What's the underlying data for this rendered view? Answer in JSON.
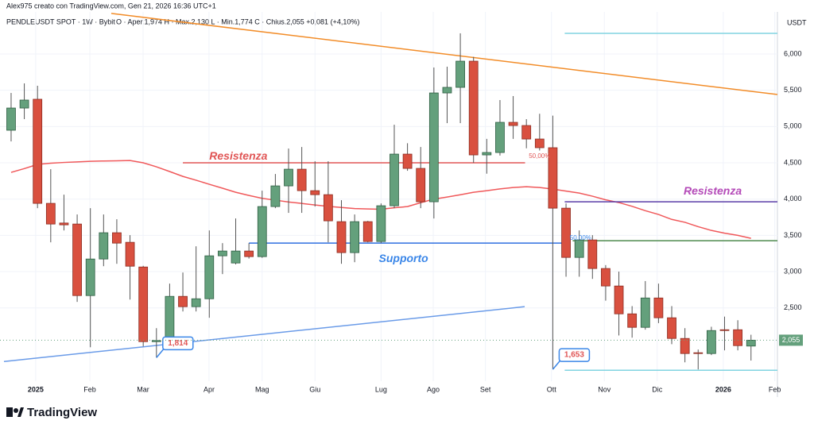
{
  "header": {
    "author": "Alex975 creato con TradingView.com, Gen 21, 2026 16:36 UTC+1",
    "logo": "TradingView"
  },
  "chart_data": {
    "type": "candlestick",
    "title": "PENDLEUSDT SPOT · 1W · Bybit",
    "subtitle": "O · Aper.1,974  H · Max.2,130  L · Min.1,774  C · Chius.2,055  +0,081 (+4,10%)",
    "y_unit": "USDT",
    "up_color": "#64a07c",
    "down_color": "#d9503f",
    "open": [
      4949,
      5255,
      5376,
      3941,
      3670,
      3656,
      2670,
      3174,
      3536,
      3404,
      3064,
      2035,
      2035,
      2659,
      2517,
      2626,
      3218,
      3119,
      3284,
      3207,
      3897,
      4182,
      4412,
      4116,
      4061,
      3689,
      3262,
      3689,
      3415,
      3908,
      4620,
      4423,
      3963,
      5463,
      5540,
      5901,
      4609,
      4642,
      5058,
      5014,
      4828,
      4708,
      3875,
      3196,
      3437,
      3043,
      2802,
      2418,
      2232,
      2637,
      2364,
      2079,
      1882,
      1871,
      2199,
      2199,
      1974
    ],
    "high": [
      5463,
      5595,
      5562,
      4412,
      4061,
      3788,
      3875,
      3788,
      3722,
      3503,
      3080,
      2221,
      2835,
      2988,
      3349,
      3568,
      3393,
      3733,
      3393,
      4116,
      4346,
      4697,
      4718,
      4521,
      4521,
      3985,
      3788,
      3700,
      3940,
      5025,
      4770,
      4718,
      5814,
      5825,
      6285,
      5960,
      4830,
      5365,
      5420,
      5102,
      5176,
      5150,
      3940,
      3568,
      3503,
      3090,
      3000,
      2525,
      2870,
      2835,
      2525,
      2221,
      1926,
      2240,
      2380,
      2330,
      2130
    ],
    "low": [
      4795,
      5102,
      3875,
      3404,
      3568,
      2583,
      1958,
      3075,
      3108,
      2615,
      1970,
      1814,
      1958,
      2451,
      2451,
      2364,
      2966,
      3100,
      3180,
      3190,
      3875,
      3810,
      3810,
      3897,
      3404,
      3108,
      3130,
      3404,
      3393,
      3875,
      4390,
      3875,
      3733,
      5047,
      5047,
      4500,
      4350,
      4600,
      4830,
      4700,
      4670,
      1653,
      2930,
      2930,
      2900,
      2600,
      2120,
      2090,
      2200,
      2290,
      2000,
      1750,
      1652,
      1850,
      1915,
      1915,
      1774
    ],
    "close": [
      5255,
      5365,
      3941,
      3656,
      3645,
      2670,
      3174,
      3536,
      3393,
      3075,
      2035,
      2050,
      2659,
      2517,
      2626,
      3218,
      3284,
      3284,
      3207,
      3897,
      4182,
      4412,
      4116,
      4061,
      3700,
      3262,
      3689,
      3415,
      3908,
      4620,
      4423,
      3963,
      5463,
      5540,
      5901,
      4609,
      4642,
      5058,
      5014,
      4828,
      4708,
      3875,
      3196,
      3437,
      3043,
      2802,
      2418,
      2232,
      2637,
      2364,
      2079,
      1871,
      1871,
      2188,
      2188,
      1980,
      2055
    ],
    "moving_average": {
      "color": "#f0585a",
      "values": [
        4368,
        4420,
        4478,
        4495,
        4505,
        4512,
        4521,
        4525,
        4528,
        4532,
        4500,
        4445,
        4380,
        4313,
        4260,
        4204,
        4150,
        4094,
        4050,
        4010,
        3985,
        3960,
        3940,
        3919,
        3900,
        3885,
        3870,
        3864,
        3860,
        3880,
        3897,
        3950,
        4000,
        4028,
        4060,
        4094,
        4116,
        4140,
        4160,
        4171,
        4160,
        4138,
        4110,
        4083,
        4040,
        3990,
        3952,
        3900,
        3840,
        3788,
        3720,
        3680,
        3620,
        3568,
        3530,
        3500,
        3459
      ]
    },
    "last_price": {
      "value": 2055,
      "label": "2,055"
    },
    "xlim": [
      -0.84,
      58
    ],
    "ylim": [
      1490,
      6580
    ],
    "yticks": [
      {
        "value": 2500,
        "label": "2,500"
      },
      {
        "value": 3000,
        "label": "3,000"
      },
      {
        "value": 3500,
        "label": "3,500"
      },
      {
        "value": 4000,
        "label": "4,000"
      },
      {
        "value": 4500,
        "label": "4,500"
      },
      {
        "value": 5000,
        "label": "5,000"
      },
      {
        "value": 5500,
        "label": "5,500"
      },
      {
        "value": 6000,
        "label": "6,000"
      }
    ],
    "xticks": [
      {
        "value": 1.86,
        "label": "2025"
      },
      {
        "value": 5.96,
        "label": "Feb"
      },
      {
        "value": 9.99,
        "label": "Mar"
      },
      {
        "value": 14.98,
        "label": "Apr"
      },
      {
        "value": 19,
        "label": "Mag"
      },
      {
        "value": 23,
        "label": "Giu"
      },
      {
        "value": 28,
        "label": "Lug"
      },
      {
        "value": 31.95,
        "label": "Ago"
      },
      {
        "value": 35.9,
        "label": "Set"
      },
      {
        "value": 40.9,
        "label": "Ott"
      },
      {
        "value": 44.9,
        "label": "Nov"
      },
      {
        "value": 48.9,
        "label": "Dic"
      },
      {
        "value": 53.9,
        "label": "2026"
      },
      {
        "value": 57.8,
        "label": "Feb"
      }
    ],
    "grid": true,
    "lines": [
      {
        "x": [
          7.58,
          58
        ],
        "y": [
          6559,
          5441
        ],
        "color": "#f28c28"
      },
      {
        "x": [
          -0.54,
          38.87
        ],
        "y": [
          1761,
          2517
        ],
        "color": "#6a9be8"
      },
      {
        "x": [
          13,
          38.9
        ],
        "y": [
          4500,
          4500
        ],
        "color": "#e05555"
      },
      {
        "x": [
          18,
          41.9
        ],
        "y": [
          3393,
          3393
        ],
        "color": "#2f6fe0"
      },
      {
        "x": [
          41.9,
          58
        ],
        "y": [
          3963,
          3963
        ],
        "color": "#5b3fa8"
      },
      {
        "x": [
          42.5,
          58
        ],
        "y": [
          3426,
          3426
        ],
        "color": "#4e8a4e"
      },
      {
        "x": [
          41.9,
          58
        ],
        "y": [
          6285,
          6285
        ],
        "color": "#80d4e0"
      },
      {
        "x": [
          41.9,
          58
        ],
        "y": [
          1640,
          1640
        ],
        "color": "#80d4e0"
      }
    ],
    "annotations": [
      {
        "text": "Resistenza",
        "x": 17.2,
        "y": 4587,
        "color": "#e05555"
      },
      {
        "text": "Resistenza",
        "x": 53.1,
        "y": 4105,
        "color": "#b44ab8"
      },
      {
        "text": "Supporto",
        "x": 29.7,
        "y": 3174,
        "color": "#3a86e8"
      },
      {
        "text": "50,00%",
        "x": 40,
        "y": 4587,
        "color": "#e05555"
      },
      {
        "text": "50,00%",
        "x": 43.1,
        "y": 3459,
        "color": "#3a86e8"
      }
    ],
    "callouts": [
      {
        "text": "1,814",
        "x": 11,
        "y": 1814
      },
      {
        "text": "1,653",
        "x": 41,
        "y": 1653
      }
    ]
  }
}
